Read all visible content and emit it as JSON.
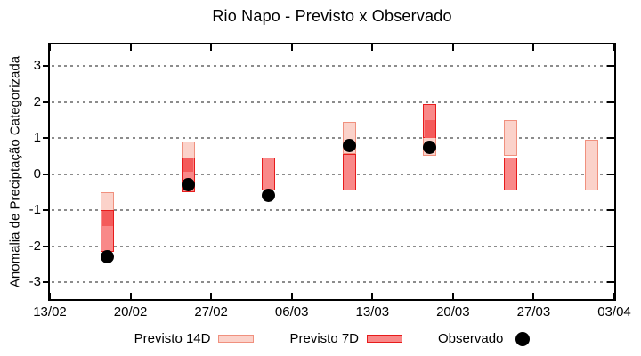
{
  "title": "Rio Napo - Previsto x Observado",
  "y_axis": {
    "label": "Anomalia de Preciptação Categorizada"
  },
  "legend": [
    {
      "label": "Previsto 14D",
      "marker": "range-box-light"
    },
    {
      "label": "Previsto 7D",
      "marker": "range-box-red"
    },
    {
      "label": "Observado",
      "marker": "black-dot"
    }
  ],
  "colors": {
    "p14_fill": "#fbd2ca",
    "p14_border": "#f0907e",
    "p7_fill": "#f98989",
    "p7_border": "#e71c1c",
    "overlap_fill": "#f45b5b",
    "observed": "#000000",
    "grid": "#8c8c8c",
    "axis": "#000000",
    "background": "#ffffff"
  },
  "chart_data": {
    "type": "candlestick",
    "title": "Rio Napo - Previsto x Observado",
    "xlabel": "",
    "ylabel": "Anomalia de Preciptação Categorizada",
    "x_tick_labels": [
      "13/02",
      "20/02",
      "27/02",
      "06/03",
      "13/03",
      "20/03",
      "27/03",
      "03/04"
    ],
    "y_ticks": [
      -3,
      -2,
      -1,
      0,
      1,
      2,
      3
    ],
    "ylim": [
      -3.5,
      3.6
    ],
    "grid": "horizontal-dotted",
    "legend_position": "bottom-center",
    "series": [
      {
        "name": "Previsto 14D",
        "type": "range-bar",
        "points": [
          {
            "date": "18/02",
            "high": -0.5,
            "low": -1.45
          },
          {
            "date": "25/02",
            "high": 0.9,
            "low": 0.05
          },
          {
            "date": "11/03",
            "high": 1.45,
            "low": 0.55
          },
          {
            "date": "18/03",
            "high": 1.5,
            "low": 0.5
          },
          {
            "date": "25/03",
            "high": 1.5,
            "low": 0.5
          },
          {
            "date": "01/04",
            "high": 0.95,
            "low": -0.45
          }
        ]
      },
      {
        "name": "Previsto 7D",
        "type": "range-bar",
        "points": [
          {
            "date": "18/02",
            "high": -1.0,
            "low": -2.15
          },
          {
            "date": "25/02",
            "high": 0.45,
            "low": -0.5
          },
          {
            "date": "04/03",
            "high": 0.45,
            "low": -0.45
          },
          {
            "date": "11/03",
            "high": 0.55,
            "low": -0.45
          },
          {
            "date": "18/03",
            "high": 1.95,
            "low": 1.0
          },
          {
            "date": "25/03",
            "high": 0.45,
            "low": -0.45
          }
        ]
      },
      {
        "name": "Observado",
        "type": "scatter",
        "points": [
          {
            "date": "18/02",
            "value": -2.3
          },
          {
            "date": "25/02",
            "value": -0.3
          },
          {
            "date": "04/03",
            "value": -0.6
          },
          {
            "date": "11/03",
            "value": 0.8
          },
          {
            "date": "18/03",
            "value": 0.75
          }
        ]
      }
    ]
  }
}
